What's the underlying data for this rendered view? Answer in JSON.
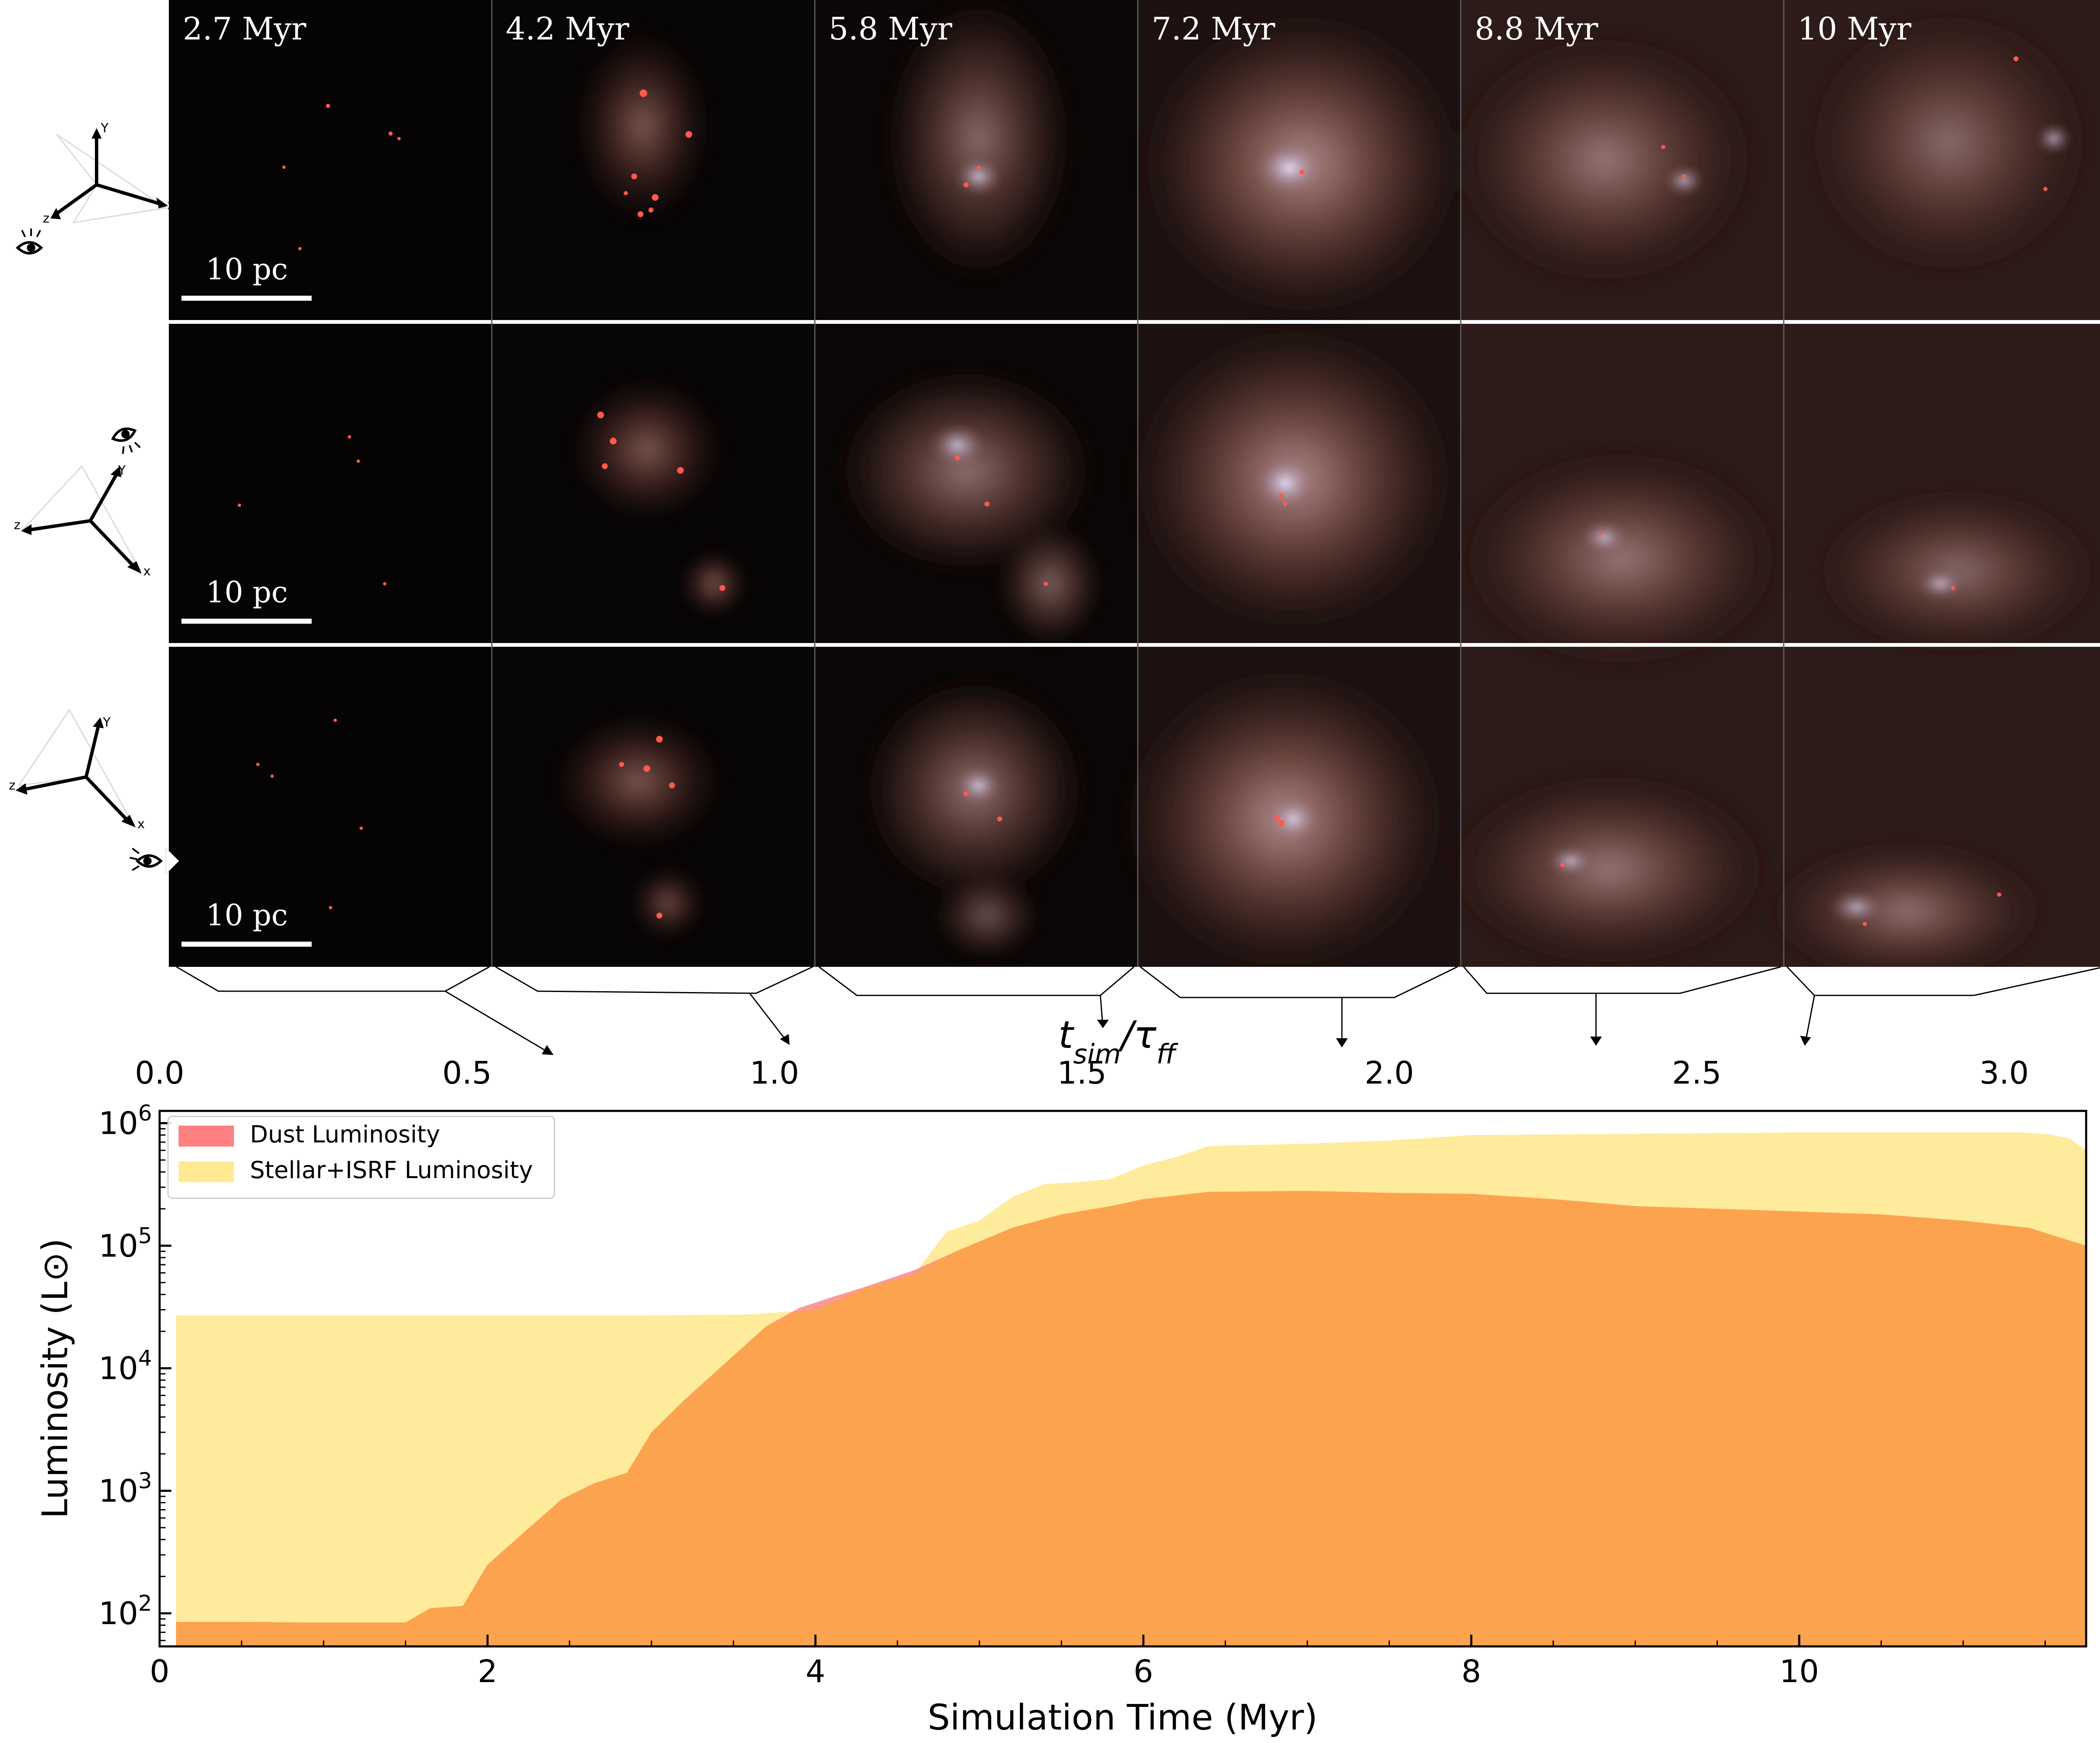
{
  "panels": {
    "times": [
      "2.7 Myr",
      "4.2 Myr",
      "5.8 Myr",
      "7.2 Myr",
      "8.8 Myr",
      "10 Myr"
    ],
    "scale_bar_label": "10 pc",
    "axis_letters": {
      "x": "x",
      "y": "Y",
      "z": "z"
    }
  },
  "top_axis": {
    "label": "t_sim/τ_ff",
    "label_main": "t",
    "label_sub1": "sim",
    "label_slash": "/τ",
    "label_sub2": "ff",
    "ticks": [
      "0.0",
      "0.5",
      "1.0",
      "1.5",
      "2.0",
      "2.5",
      "3.0"
    ]
  },
  "colors": {
    "dust": "#ff8080",
    "stellar": "#ffe680",
    "overlap": "#fca34f",
    "frame": "#000000"
  },
  "chart_data": {
    "type": "area",
    "xlabel": "Simulation Time (Myr)",
    "ylabel": "Luminosity (L⊙)",
    "xlim": [
      0,
      11.75
    ],
    "ylim_log10": [
      1.73,
      6.1
    ],
    "yscale": "log",
    "x_ticks": [
      0,
      2,
      4,
      6,
      8,
      10
    ],
    "y_ticks": [
      {
        "base": "10",
        "exp": "2"
      },
      {
        "base": "10",
        "exp": "3"
      },
      {
        "base": "10",
        "exp": "4"
      },
      {
        "base": "10",
        "exp": "5"
      },
      {
        "base": "10",
        "exp": "6"
      }
    ],
    "legend_position": "upper-left",
    "series": [
      {
        "name": "Dust Luminosity",
        "x": [
          0.1,
          0.5,
          1.0,
          1.5,
          1.65,
          1.85,
          2.0,
          2.2,
          2.45,
          2.65,
          2.85,
          3.0,
          3.2,
          3.45,
          3.7,
          3.9,
          4.1,
          4.3,
          4.6,
          4.9,
          5.2,
          5.5,
          5.8,
          6.0,
          6.4,
          7.0,
          7.5,
          8.0,
          8.5,
          9.0,
          9.5,
          10.0,
          10.5,
          11.0,
          11.4,
          11.75
        ],
        "values": [
          85,
          85,
          84,
          84,
          110,
          115,
          250,
          430,
          850,
          1150,
          1400,
          3000,
          5500,
          11000,
          22000,
          31000,
          38000,
          46000,
          63000,
          95000,
          140000,
          180000,
          210000,
          240000,
          275000,
          280000,
          270000,
          265000,
          240000,
          210000,
          200000,
          190000,
          180000,
          160000,
          140000,
          100000
        ]
      },
      {
        "name": "Stellar+ISRF Luminosity",
        "x": [
          0.1,
          1.0,
          2.0,
          3.0,
          3.6,
          4.0,
          4.3,
          4.6,
          4.8,
          5.0,
          5.2,
          5.4,
          5.6,
          5.8,
          6.0,
          6.2,
          6.4,
          6.6,
          7.0,
          7.5,
          8.0,
          8.5,
          9.0,
          9.5,
          10.0,
          10.5,
          11.0,
          11.35,
          11.5,
          11.65,
          11.75
        ],
        "values": [
          27000,
          27000,
          27000,
          27000,
          27500,
          30000,
          45000,
          58000,
          130000,
          160000,
          250000,
          320000,
          330000,
          350000,
          450000,
          530000,
          650000,
          660000,
          680000,
          720000,
          800000,
          810000,
          820000,
          830000,
          840000,
          840000,
          840000,
          840000,
          820000,
          750000,
          600000
        ]
      }
    ]
  }
}
